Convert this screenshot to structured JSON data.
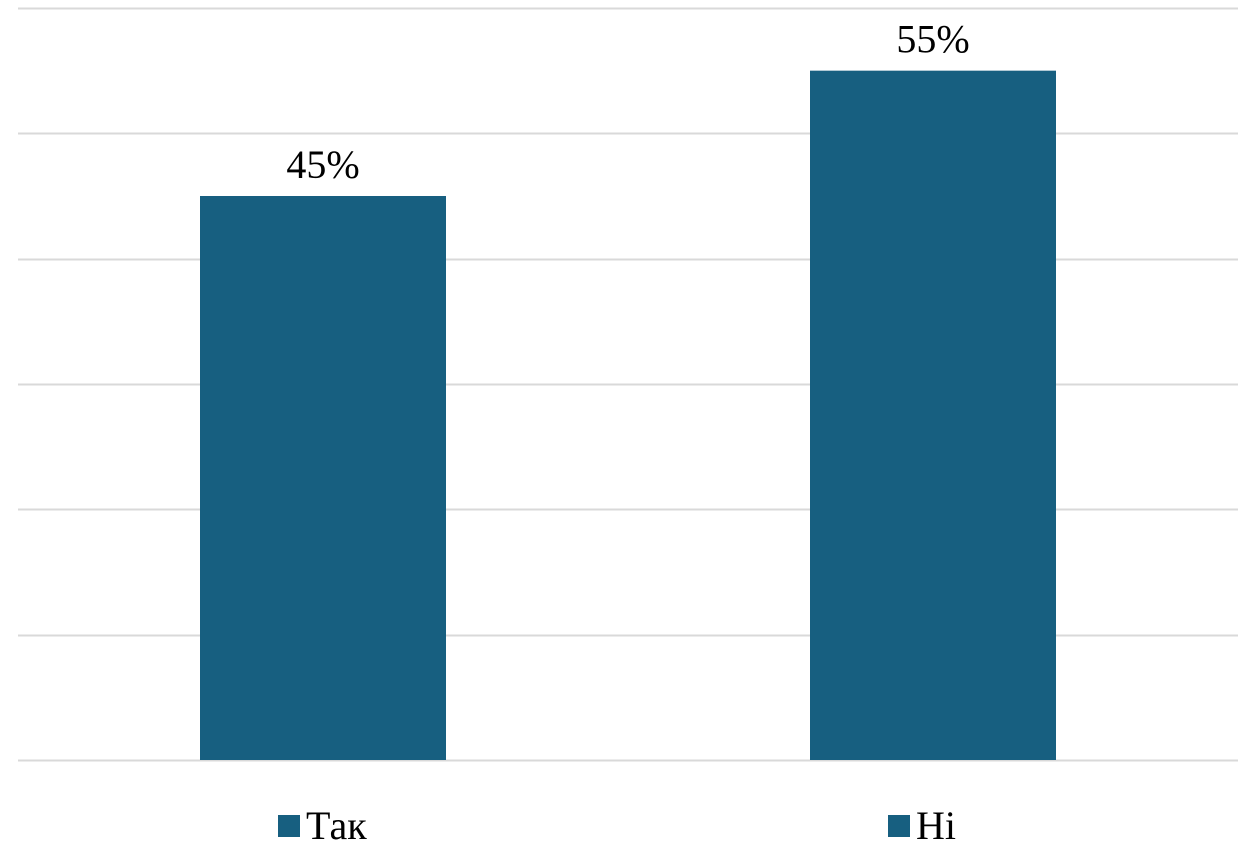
{
  "chart_data": {
    "type": "bar",
    "categories": [
      "Так",
      "Ні"
    ],
    "values": [
      45,
      55
    ],
    "value_labels": [
      "45%",
      "55%"
    ],
    "ylim": [
      0,
      60
    ],
    "grid": true,
    "legend_position": "bottom",
    "colors": {
      "bar": "#175F80",
      "grid": "#D9D9D9"
    }
  }
}
